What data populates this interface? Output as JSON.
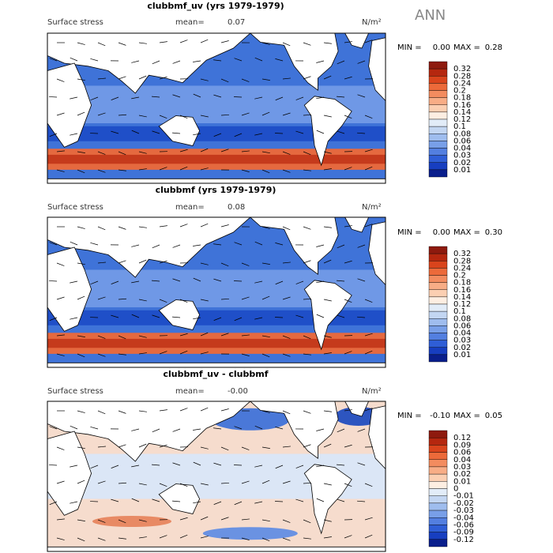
{
  "season": "ANN",
  "panels": [
    {
      "title": "clubbmf_uv (yrs 1979-1979)",
      "subtitle": "Surface stress",
      "mean_label": "mean=",
      "mean": "0.07",
      "units": "N/m²",
      "min_label": "MIN =",
      "min": "0.00",
      "max_label": "MAX =",
      "max": "0.28",
      "colorbar": {
        "labels": [
          "0.32",
          "0.28",
          "0.24",
          "0.2",
          "0.18",
          "0.16",
          "0.14",
          "0.12",
          "0.1",
          "0.08",
          "0.06",
          "0.04",
          "0.03",
          "0.02",
          "0.01"
        ],
        "colors": [
          "#8e1a0e",
          "#b5270f",
          "#d9441c",
          "#ec6a3a",
          "#f38c5f",
          "#f8ad86",
          "#fbcfb2",
          "#fdeee2",
          "#e2ecf8",
          "#c3d6f2",
          "#9fbdee",
          "#789fe8",
          "#537fe0",
          "#2f5ed6",
          "#173ec0",
          "#0a1f8c"
        ]
      }
    },
    {
      "title": "clubbmf (yrs 1979-1979)",
      "subtitle": "Surface stress",
      "mean_label": "mean=",
      "mean": "0.08",
      "units": "N/m²",
      "min_label": "MIN =",
      "min": "0.00",
      "max_label": "MAX =",
      "max": "0.30",
      "colorbar": {
        "labels": [
          "0.32",
          "0.28",
          "0.24",
          "0.2",
          "0.18",
          "0.16",
          "0.14",
          "0.12",
          "0.1",
          "0.08",
          "0.06",
          "0.04",
          "0.03",
          "0.02",
          "0.01"
        ],
        "colors": [
          "#8e1a0e",
          "#b5270f",
          "#d9441c",
          "#ec6a3a",
          "#f38c5f",
          "#f8ad86",
          "#fbcfb2",
          "#fdeee2",
          "#e2ecf8",
          "#c3d6f2",
          "#9fbdee",
          "#789fe8",
          "#537fe0",
          "#2f5ed6",
          "#173ec0",
          "#0a1f8c"
        ]
      }
    },
    {
      "title": "clubbmf_uv - clubbmf",
      "subtitle": "Surface stress",
      "mean_label": "mean=",
      "mean": "-0.00",
      "units": "N/m²",
      "min_label": "MIN =",
      "min": "-0.10",
      "max_label": "MAX =",
      "max": "0.05",
      "colorbar": {
        "labels": [
          "0.12",
          "0.09",
          "0.06",
          "0.04",
          "0.03",
          "0.02",
          "0.01",
          "0",
          "-0.01",
          "-0.02",
          "-0.03",
          "-0.04",
          "-0.06",
          "-0.09",
          "-0.12"
        ],
        "colors": [
          "#8e1a0e",
          "#b5270f",
          "#d9441c",
          "#ec6a3a",
          "#f38c5f",
          "#f8ad86",
          "#fbcfb2",
          "#fdeee2",
          "#e2ecf8",
          "#c3d6f2",
          "#9fbdee",
          "#789fe8",
          "#537fe0",
          "#2f5ed6",
          "#173ec0",
          "#0a1f8c"
        ]
      }
    }
  ]
}
